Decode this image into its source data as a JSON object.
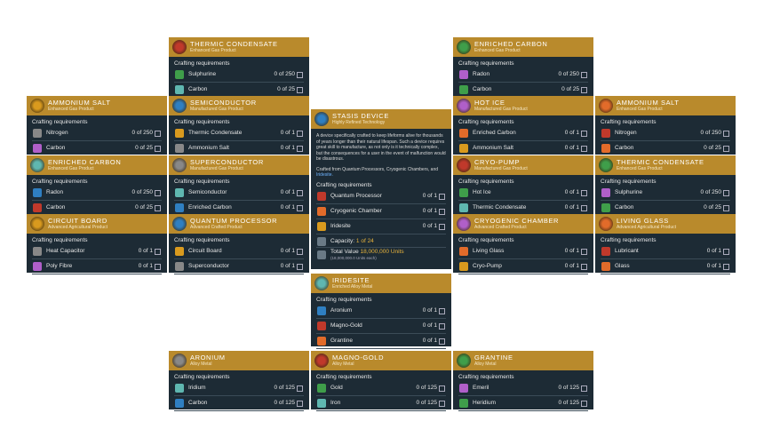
{
  "cards": [
    {
      "title": "THERMIC CONDENSATE",
      "subtitle": "Enhanced Gas Product",
      "requirements_label": "Crafting requirements",
      "items": [
        {
          "name": "Sulphurine",
          "amount": "0 of 250"
        },
        {
          "name": "Carbon",
          "amount": "0 of 25"
        }
      ]
    },
    {
      "title": "ENRICHED CARBON",
      "subtitle": "Enhanced Gas Product",
      "requirements_label": "Crafting requirements",
      "items": [
        {
          "name": "Radon",
          "amount": "0 of 250"
        },
        {
          "name": "Carbon",
          "amount": "0 of 25"
        }
      ]
    },
    {
      "title": "AMMONIUM SALT",
      "subtitle": "Enhanced Gas Product",
      "requirements_label": "Crafting requirements",
      "items": [
        {
          "name": "Nitrogen",
          "amount": "0 of 250"
        },
        {
          "name": "Carbon",
          "amount": "0 of 25"
        }
      ]
    },
    {
      "title": "SEMICONDUCTOR",
      "subtitle": "Manufactured Gas Product",
      "requirements_label": "Crafting requirements",
      "items": [
        {
          "name": "Thermic Condensate",
          "amount": "0 of 1"
        },
        {
          "name": "Ammonium Salt",
          "amount": "0 of 1"
        }
      ]
    },
    {
      "title": "HOT ICE",
      "subtitle": "Manufactured Gas Product",
      "requirements_label": "Crafting requirements",
      "items": [
        {
          "name": "Enriched Carbon",
          "amount": "0 of 1"
        },
        {
          "name": "Ammonium Salt",
          "amount": "0 of 1"
        }
      ]
    },
    {
      "title": "AMMONIUM SALT",
      "subtitle": "Enhanced Gas Product",
      "requirements_label": "Crafting requirements",
      "items": [
        {
          "name": "Nitrogen",
          "amount": "0 of 250"
        },
        {
          "name": "Carbon",
          "amount": "0 of 25"
        }
      ]
    },
    {
      "title": "ENRICHED CARBON",
      "subtitle": "Enhanced Gas Product",
      "requirements_label": "Crafting requirements",
      "items": [
        {
          "name": "Radon",
          "amount": "0 of 250"
        },
        {
          "name": "Carbon",
          "amount": "0 of 25"
        }
      ]
    },
    {
      "title": "SUPERCONDUCTOR",
      "subtitle": "Manufactured Gas Product",
      "requirements_label": "Crafting requirements",
      "items": [
        {
          "name": "Semiconductor",
          "amount": "0 of 1"
        },
        {
          "name": "Enriched Carbon",
          "amount": "0 of 1"
        }
      ]
    },
    {
      "title": "CRYO-PUMP",
      "subtitle": "Manufactured Gas Product",
      "requirements_label": "Crafting requirements",
      "items": [
        {
          "name": "Hot Ice",
          "amount": "0 of 1"
        },
        {
          "name": "Thermic Condensate",
          "amount": "0 of 1"
        }
      ]
    },
    {
      "title": "THERMIC CONDENSATE",
      "subtitle": "Enhanced Gas Product",
      "requirements_label": "Crafting requirements",
      "items": [
        {
          "name": "Sulphurine",
          "amount": "0 of 250"
        },
        {
          "name": "Carbon",
          "amount": "0 of 25"
        }
      ]
    },
    {
      "title": "CIRCUIT BOARD",
      "subtitle": "Advanced Agricultural Product",
      "requirements_label": "Crafting requirements",
      "items": [
        {
          "name": "Heat Capacitor",
          "amount": "0 of 1"
        },
        {
          "name": "Poly Fibre",
          "amount": "0 of 1"
        }
      ]
    },
    {
      "title": "QUANTUM PROCESSOR",
      "subtitle": "Advanced Crafted Product",
      "requirements_label": "Crafting requirements",
      "items": [
        {
          "name": "Circuit Board",
          "amount": "0 of 1"
        },
        {
          "name": "Superconductor",
          "amount": "0 of 1"
        }
      ]
    },
    {
      "title": "CRYOGENIC CHAMBER",
      "subtitle": "Advanced Crafted Product",
      "requirements_label": "Crafting requirements",
      "items": [
        {
          "name": "Living Glass",
          "amount": "0 of 1"
        },
        {
          "name": "Cryo-Pump",
          "amount": "0 of 1"
        }
      ]
    },
    {
      "title": "LIVING GLASS",
      "subtitle": "Advanced Agricultural Product",
      "requirements_label": "Crafting requirements",
      "items": [
        {
          "name": "Lubricant",
          "amount": "0 of 1"
        },
        {
          "name": "Glass",
          "amount": "0 of 1"
        }
      ]
    },
    {
      "title": "IRIDESITE",
      "subtitle": "Enriched Alloy Metal",
      "requirements_label": "Crafting requirements",
      "items": [
        {
          "name": "Aronium",
          "amount": "0 of 1"
        },
        {
          "name": "Magno-Gold",
          "amount": "0 of 1"
        },
        {
          "name": "Grantine",
          "amount": "0 of 1"
        }
      ]
    },
    {
      "title": "ARONIUM",
      "subtitle": "Alloy Metal",
      "requirements_label": "Crafting requirements",
      "items": [
        {
          "name": "Iridium",
          "amount": "0 of 125"
        },
        {
          "name": "Carbon",
          "amount": "0 of 125"
        }
      ]
    },
    {
      "title": "MAGNO-GOLD",
      "subtitle": "Alloy Metal",
      "requirements_label": "Crafting requirements",
      "items": [
        {
          "name": "Gold",
          "amount": "0 of 125"
        },
        {
          "name": "Iron",
          "amount": "0 of 125"
        }
      ]
    },
    {
      "title": "GRANTINE",
      "subtitle": "Alloy Metal",
      "requirements_label": "Crafting requirements",
      "items": [
        {
          "name": "Emeril",
          "amount": "0 of 125"
        },
        {
          "name": "Heridium",
          "amount": "0 of 125"
        }
      ]
    }
  ],
  "main": {
    "title": "STASIS DEVICE",
    "subtitle": "Highly Refined Technology",
    "description": "A device specifically crafted to keep lifeforms alive for thousands of years longer than their natural lifespan. Such a device requires great skill to manufacture, as not only is it technically complex, but the consequences for a user in the event of malfunction would be disastrous.",
    "crafted_from": "Crafted from Quantum Processors, Cryogenic Chambers, and",
    "crafted_from_link": "Iridesite.",
    "requirements_label": "Crafting requirements",
    "items": [
      {
        "name": "Quantum Processor",
        "amount": "0 of 1"
      },
      {
        "name": "Cryogenic Chamber",
        "amount": "0 of 1"
      },
      {
        "name": "Iridesite",
        "amount": "0 of 1"
      }
    ],
    "capacity_label": "Capacity:",
    "capacity": "1 of 24",
    "total_value_label": "Total Value",
    "total_value": "18,000,000 Units",
    "total_value_each": "(18,000,000.0 Units each)"
  }
}
